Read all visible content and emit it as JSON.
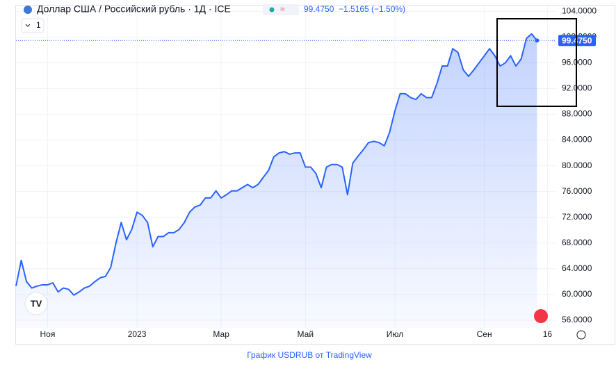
{
  "header": {
    "title": "Доллар США / Российский рубль · 1Д · ICE",
    "change": "−1.5165 (−1.50%)",
    "interval": "1"
  },
  "footer": "График USDRUB от TradingView",
  "chart_data": {
    "type": "line",
    "categories": [
      null,
      null,
      null,
      null,
      null,
      null,
      "Ноя",
      null,
      null,
      null,
      null,
      null,
      null,
      null,
      null,
      null,
      null,
      null,
      null,
      null,
      null,
      null,
      null,
      "2023",
      null,
      null,
      null,
      null,
      null,
      null,
      null,
      null,
      null,
      null,
      null,
      null,
      null,
      null,
      null,
      "Мар",
      null,
      null,
      null,
      null,
      null,
      null,
      null,
      null,
      null,
      null,
      null,
      null,
      null,
      null,
      null,
      "Май",
      null,
      null,
      null,
      null,
      null,
      null,
      null,
      null,
      null,
      null,
      null,
      null,
      null,
      null,
      null,
      null,
      "Июл",
      null,
      null,
      null,
      null,
      null,
      null,
      null,
      null,
      null,
      null,
      null,
      null,
      null,
      null,
      null,
      null,
      "Сен",
      null,
      null,
      null,
      null,
      null,
      null,
      null,
      null,
      null,
      null,
      null,
      "16",
      null
    ],
    "series": [
      {
        "color": "#2962ff",
        "values": [
          61.3,
          65.3,
          62,
          61,
          61.3,
          61.5,
          61.5,
          61.8,
          60.4,
          61,
          60.8,
          59.9,
          60.4,
          61,
          61.3,
          62,
          62.6,
          62.8,
          64.2,
          68,
          71.2,
          68.5,
          70.1,
          72.8,
          72.3,
          71.2,
          67.4,
          69,
          69,
          69.6,
          69.6,
          70.1,
          71.2,
          72.8,
          73.6,
          73.9,
          75,
          75,
          76.1,
          75,
          75.5,
          76.1,
          76.1,
          76.6,
          77.1,
          76.6,
          77.1,
          78.2,
          79.3,
          81.4,
          82,
          82.2,
          81.8,
          82,
          82,
          79.8,
          79.8,
          78.8,
          76.6,
          79.8,
          80.2,
          80.2,
          79.8,
          75.5,
          80.4,
          81.5,
          82.5,
          83.6,
          83.8,
          83.6,
          83.1,
          85.2,
          88.5,
          91.2,
          91.2,
          90.6,
          90.3,
          91.2,
          90.6,
          90.6,
          92.8,
          95.5,
          95.5,
          98.2,
          97.6,
          94.9,
          93.9,
          94.9,
          96,
          97.1,
          98.2,
          97.1,
          95.5,
          96,
          97.1,
          95.5,
          96.6,
          99.8,
          100.5,
          99.475,
          null,
          null,
          null
        ]
      }
    ],
    "current_price": {
      "value": 99.475,
      "label": "99.4750"
    },
    "ylim": [
      54.8,
      104.9
    ],
    "yticks": [
      {
        "value": 56,
        "label": "56.0000"
      },
      {
        "value": 60,
        "label": "60.0000"
      },
      {
        "value": 64,
        "label": "64.0000"
      },
      {
        "value": 68,
        "label": "68.0000"
      },
      {
        "value": 72,
        "label": "72.0000"
      },
      {
        "value": 76,
        "label": "76.0000"
      },
      {
        "value": 80,
        "label": "80.0000"
      },
      {
        "value": 84,
        "label": "84.0000"
      },
      {
        "value": 88,
        "label": "88.0000"
      },
      {
        "value": 92,
        "label": "92.0000"
      },
      {
        "value": 96,
        "label": "96.0000"
      },
      {
        "value": 100,
        "label": "100.0000"
      },
      {
        "value": 104,
        "label": "104.0000"
      }
    ],
    "grid": true
  }
}
